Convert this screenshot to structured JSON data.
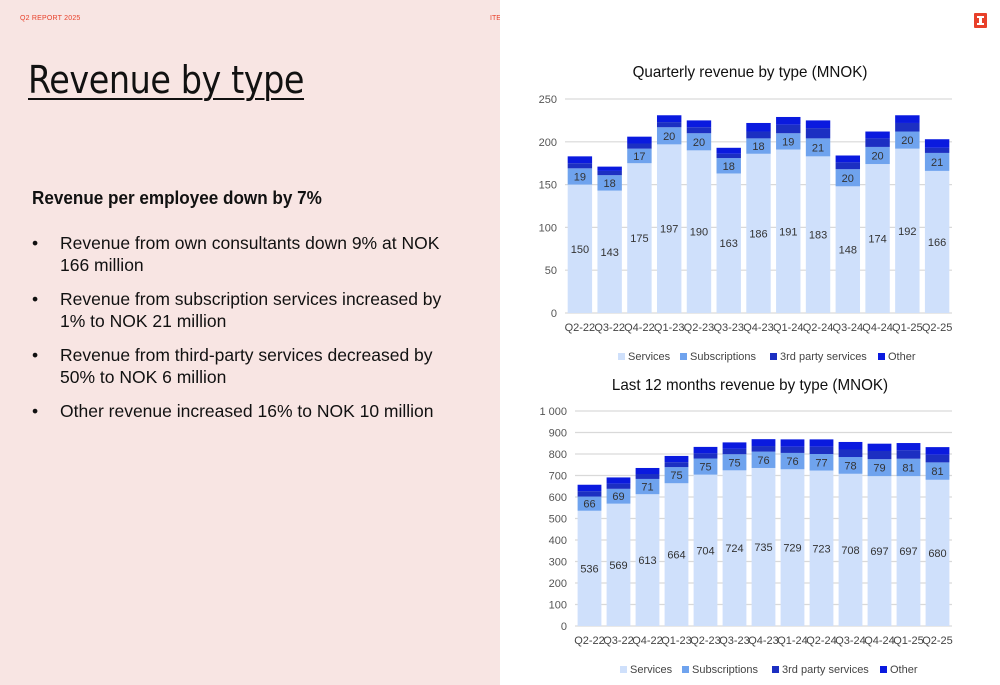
{
  "header": {
    "report_label": "Q2 REPORT 2025",
    "company_label": "ITERA"
  },
  "brand_color": "#e8402a",
  "slide": {
    "title": "Revenue by type",
    "subheading": "Revenue per employee down by 7%",
    "bullets": [
      "Revenue from own consultants down 9% at NOK 166 million",
      "Revenue from subscription services increased by 1% to NOK 21 million",
      "Revenue from third-party services decreased by 50% to NOK 6 million",
      "Other revenue increased 16% to NOK 10 million"
    ],
    "bullet_symbol": "•"
  },
  "legend": [
    "Services",
    "Subscriptions",
    "3rd party services",
    "Other"
  ],
  "colors": {
    "Services": "#cfe0fb",
    "Subscriptions": "#6fa3ee",
    "3rd party services": "#1c2fc2",
    "Other": "#0a1adf"
  },
  "chart_data": [
    {
      "type": "bar",
      "stacked": true,
      "title": "Quarterly revenue by type (MNOK)",
      "categories": [
        "Q2-22",
        "Q3-22",
        "Q4-22",
        "Q1-23",
        "Q2-23",
        "Q3-23",
        "Q4-23",
        "Q1-24",
        "Q2-24",
        "Q3-24",
        "Q4-24",
        "Q1-25",
        "Q2-25"
      ],
      "ylim": [
        0,
        250
      ],
      "yticks": [
        "0",
        "50",
        "100",
        "150",
        "200",
        "250"
      ],
      "grid": true,
      "legend_position": "bottom",
      "series": [
        {
          "name": "Services",
          "values": [
            150,
            143,
            175,
            197,
            190,
            163,
            186,
            191,
            183,
            148,
            174,
            192,
            166
          ],
          "labeled": true
        },
        {
          "name": "Subscriptions",
          "values": [
            19,
            18,
            17,
            20,
            20,
            18,
            18,
            19,
            21,
            20,
            20,
            20,
            21
          ],
          "labeled": true
        },
        {
          "name": "3rd party services",
          "values": [
            6,
            5,
            6,
            6,
            7,
            5,
            8,
            10,
            12,
            8,
            10,
            10,
            6
          ]
        },
        {
          "name": "Other",
          "values": [
            8,
            5,
            8,
            8,
            8,
            7,
            10,
            9,
            9,
            8,
            8,
            9,
            10
          ]
        }
      ]
    },
    {
      "type": "bar",
      "stacked": true,
      "title": "Last 12 months revenue by type (MNOK)",
      "categories": [
        "Q2-22",
        "Q3-22",
        "Q4-22",
        "Q1-23",
        "Q2-23",
        "Q3-23",
        "Q4-23",
        "Q1-24",
        "Q2-24",
        "Q3-24",
        "Q4-24",
        "Q1-25",
        "Q2-25"
      ],
      "ylim": [
        0,
        1000
      ],
      "yticks": [
        "0",
        "100",
        "200",
        "300",
        "400",
        "500",
        "600",
        "700",
        "800",
        "900",
        "1 000"
      ],
      "grid": true,
      "legend_position": "bottom",
      "series": [
        {
          "name": "Services",
          "values": [
            536,
            569,
            613,
            664,
            704,
            724,
            735,
            729,
            723,
            708,
            697,
            697,
            680
          ],
          "labeled": true
        },
        {
          "name": "Subscriptions",
          "values": [
            66,
            69,
            71,
            75,
            75,
            75,
            76,
            76,
            77,
            78,
            79,
            81,
            81
          ],
          "labeled": true
        },
        {
          "name": "3rd party services",
          "values": [
            25,
            24,
            23,
            23,
            24,
            25,
            26,
            29,
            34,
            35,
            38,
            40,
            36
          ]
        },
        {
          "name": "Other",
          "values": [
            30,
            29,
            28,
            29,
            30,
            30,
            32,
            34,
            34,
            35,
            34,
            33,
            35
          ]
        }
      ]
    }
  ]
}
